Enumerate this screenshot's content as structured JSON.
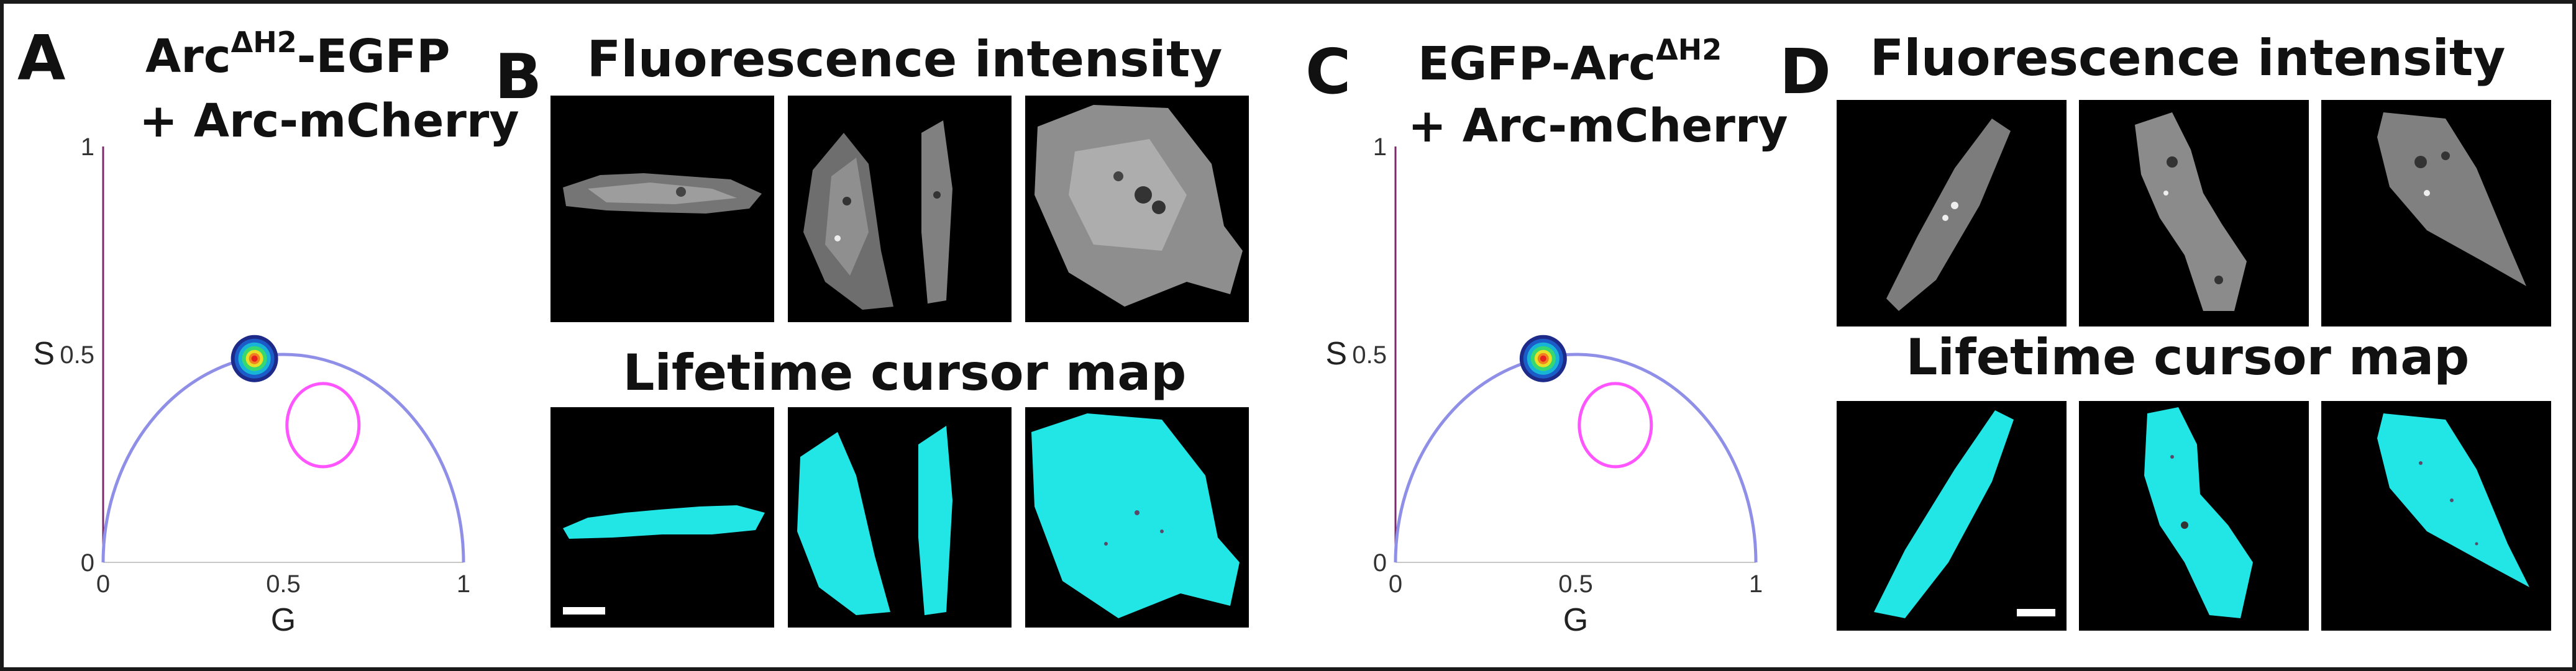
{
  "figure": {
    "panels": [
      {
        "letter": "A",
        "title_line1_main": "Arc",
        "title_line1_sup": "ΔH2",
        "title_line1_rest": "-EGFP",
        "title_line2": "+ Arc-mCherry",
        "chart_data": {
          "type": "scatter",
          "x_label": "G",
          "y_label": "S",
          "x_ticks": [
            "0",
            "0.5",
            "1"
          ],
          "y_ticks": [
            "0",
            "0.5",
            "1"
          ],
          "xlim": [
            0,
            1
          ],
          "ylim": [
            0,
            1
          ],
          "semicircle_color": "#8f8fe8",
          "cursor_color": "#ff55ff",
          "cluster_center": [
            0.42,
            0.49
          ],
          "cursor_center": [
            0.61,
            0.33
          ],
          "cursor_radius": 0.1
        }
      },
      {
        "letter": "B",
        "top_title": "Fluorescence intensity",
        "bottom_title": "Lifetime cursor map",
        "map_color": "#22e5e5"
      },
      {
        "letter": "C",
        "title_line1_main": "EGFP-Arc",
        "title_line1_sup": "ΔH2",
        "title_line1_rest": "",
        "title_line2": "+ Arc-mCherry",
        "chart_data": {
          "type": "scatter",
          "x_label": "G",
          "y_label": "S",
          "x_ticks": [
            "0",
            "0.5",
            "1"
          ],
          "y_ticks": [
            "0",
            "0.5",
            "1"
          ],
          "xlim": [
            0,
            1
          ],
          "ylim": [
            0,
            1
          ],
          "semicircle_color": "#8f8fe8",
          "cursor_color": "#ff55ff",
          "cluster_center": [
            0.41,
            0.49
          ],
          "cursor_center": [
            0.61,
            0.33
          ],
          "cursor_radius": 0.1
        }
      },
      {
        "letter": "D",
        "top_title": "Fluorescence intensity",
        "bottom_title": "Lifetime cursor map",
        "map_color": "#22e5e5"
      }
    ]
  }
}
